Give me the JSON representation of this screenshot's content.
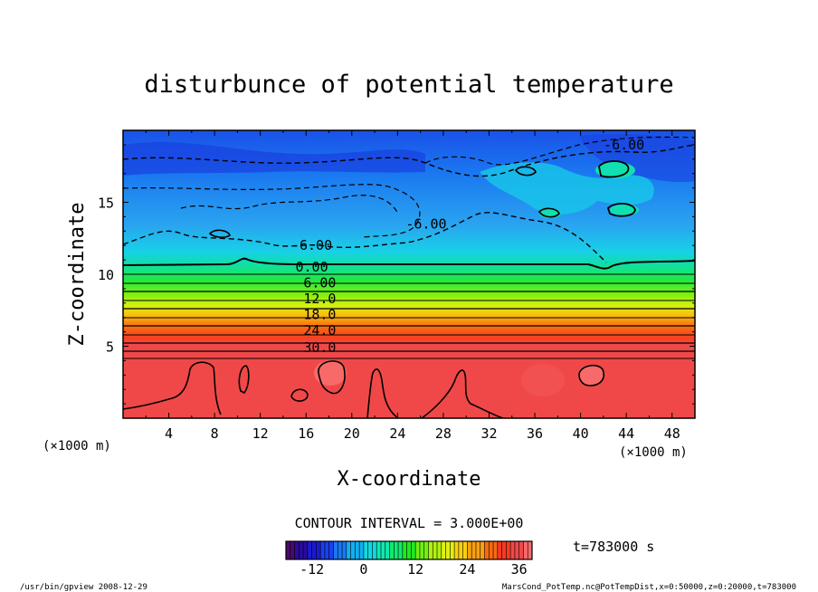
{
  "chart_data": {
    "type": "heatmap",
    "title": "disturbunce of potential temperature",
    "xlabel": "X-coordinate",
    "ylabel": "Z-coordinate",
    "x_unit": "(×1000 m)",
    "y_unit": "(×1000 m)",
    "xlim": [
      0,
      50
    ],
    "ylim": [
      0,
      20
    ],
    "x_ticks": [
      4,
      8,
      12,
      16,
      20,
      24,
      28,
      32,
      36,
      40,
      44,
      48
    ],
    "y_ticks": [
      5,
      10,
      15
    ],
    "contour_interval_text": "CONTOUR INTERVAL = 3.000E+00",
    "contour_interval": 3.0,
    "contour_labels": [
      {
        "text": "-6.00",
        "x": 43.8,
        "z": 19.0
      },
      {
        "text": "-6.00",
        "x": 16.5,
        "z": 12.0
      },
      {
        "text": "-6.00",
        "x": 26.5,
        "z": 13.5
      },
      {
        "text": "0.00",
        "x": 16.5,
        "z": 10.5
      },
      {
        "text": "6.00",
        "x": 17.2,
        "z": 9.4
      },
      {
        "text": "12.0",
        "x": 17.2,
        "z": 8.3
      },
      {
        "text": "18.0",
        "x": 17.2,
        "z": 7.2
      },
      {
        "text": "24.0",
        "x": 17.2,
        "z": 6.1
      },
      {
        "text": "30.0",
        "x": 17.2,
        "z": 4.9
      }
    ],
    "colorbar": {
      "ticks": [
        -12,
        0,
        12,
        24,
        36
      ],
      "min": -18,
      "max": 39,
      "colors": [
        "#4a0a6a",
        "#2a0aa0",
        "#1a1ad0",
        "#1a40f0",
        "#1a78f0",
        "#10b0f0",
        "#10d8e0",
        "#10e8b0",
        "#10e870",
        "#20e820",
        "#70f010",
        "#b0f010",
        "#e0f010",
        "#f8d010",
        "#f8a010",
        "#f86a10",
        "#f83a20",
        "#f04848",
        "#f86a6a"
      ]
    },
    "time_text": "t=783000 s"
  },
  "footer": {
    "left": "/usr/bin/gpview  2008-12-29",
    "right": "MarsCond_PotTemp.nc@PotTempDist,x=0:50000,z=0:20000,t=783000"
  }
}
